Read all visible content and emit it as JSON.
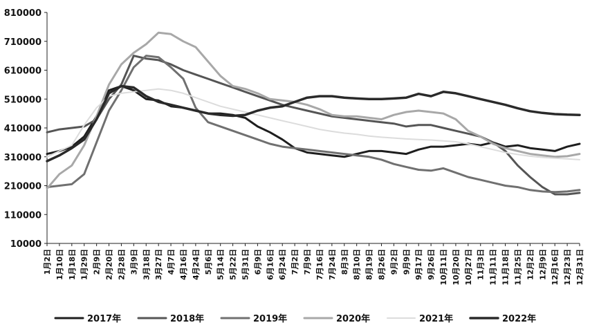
{
  "chart_data": {
    "type": "line",
    "title": "",
    "xlabel": "",
    "ylabel": "",
    "ylim": [
      10000,
      810000
    ],
    "yticks": [
      10000,
      110000,
      210000,
      310000,
      410000,
      510000,
      610000,
      710000,
      810000
    ],
    "grid": false,
    "legend_position": "bottom",
    "x": [
      "1月2日",
      "1月10日",
      "1月18日",
      "1月29日",
      "2月9日",
      "2月20日",
      "2月28日",
      "3月9日",
      "3月18日",
      "3月27日",
      "4月7日",
      "4月16日",
      "4月24日",
      "5月6日",
      "5月14日",
      "5月22日",
      "5月31日",
      "6月9日",
      "6月16日",
      "6月24日",
      "7月2日",
      "7月9日",
      "7月16日",
      "7月24日",
      "8月3日",
      "8月10日",
      "8月19日",
      "8月26日",
      "9月2日",
      "9月9日",
      "9月17日",
      "9月26日",
      "10月11日",
      "10月20日",
      "10月27日",
      "11月3日",
      "11月11日",
      "11月18日",
      "11月25日",
      "12月2日",
      "12月9日",
      "12月16日",
      "12月23日",
      "12月31日"
    ],
    "series": [
      {
        "name": "2017年",
        "color": "#1e1e1e",
        "width": 3,
        "values": [
          320000,
          330000,
          345000,
          380000,
          450000,
          540000,
          555000,
          540000,
          510000,
          505000,
          485000,
          480000,
          470000,
          460000,
          460000,
          455000,
          445000,
          415000,
          395000,
          370000,
          340000,
          325000,
          320000,
          315000,
          310000,
          320000,
          330000,
          330000,
          325000,
          320000,
          335000,
          345000,
          345000,
          350000,
          355000,
          350000,
          360000,
          345000,
          350000,
          340000,
          335000,
          330000,
          345000,
          355000
        ]
      },
      {
        "name": "2018年",
        "color": "#555555",
        "width": 3,
        "values": [
          395000,
          405000,
          410000,
          415000,
          440000,
          510000,
          560000,
          660000,
          650000,
          645000,
          630000,
          610000,
          595000,
          580000,
          565000,
          550000,
          535000,
          520000,
          505000,
          490000,
          480000,
          470000,
          460000,
          450000,
          445000,
          440000,
          435000,
          430000,
          425000,
          415000,
          420000,
          420000,
          410000,
          400000,
          390000,
          380000,
          360000,
          330000,
          280000,
          240000,
          205000,
          180000,
          180000,
          185000
        ]
      },
      {
        "name": "2019年",
        "color": "#707070",
        "width": 3,
        "values": [
          205000,
          210000,
          215000,
          250000,
          360000,
          470000,
          540000,
          620000,
          660000,
          655000,
          620000,
          580000,
          480000,
          430000,
          415000,
          400000,
          385000,
          370000,
          355000,
          345000,
          340000,
          335000,
          330000,
          325000,
          320000,
          315000,
          310000,
          300000,
          285000,
          275000,
          265000,
          262000,
          270000,
          255000,
          240000,
          230000,
          220000,
          210000,
          205000,
          195000,
          190000,
          188000,
          190000,
          195000
        ]
      },
      {
        "name": "2020年",
        "color": "#a8a8a8",
        "width": 3,
        "values": [
          200000,
          250000,
          280000,
          350000,
          450000,
          560000,
          630000,
          670000,
          700000,
          740000,
          735000,
          710000,
          690000,
          640000,
          590000,
          555000,
          545000,
          530000,
          510000,
          505000,
          500000,
          490000,
          475000,
          455000,
          450000,
          450000,
          445000,
          440000,
          455000,
          465000,
          470000,
          465000,
          460000,
          440000,
          400000,
          380000,
          355000,
          340000,
          330000,
          320000,
          315000,
          310000,
          312000,
          320000
        ]
      },
      {
        "name": "2021年",
        "color": "#dcdcdc",
        "width": 2,
        "values": [
          310000,
          330000,
          350000,
          420000,
          480000,
          520000,
          530000,
          535000,
          540000,
          545000,
          540000,
          530000,
          515000,
          500000,
          485000,
          475000,
          465000,
          455000,
          445000,
          435000,
          425000,
          415000,
          405000,
          398000,
          392000,
          388000,
          382000,
          378000,
          375000,
          372000,
          370000,
          368000,
          365000,
          362000,
          355000,
          345000,
          335000,
          325000,
          318000,
          312000,
          308000,
          305000,
          303000,
          300000
        ]
      },
      {
        "name": "2022年",
        "color": "#2a2a2a",
        "width": 3.5,
        "values": [
          295000,
          315000,
          340000,
          370000,
          440000,
          530000,
          555000,
          550000,
          520000,
          500000,
          490000,
          480000,
          470000,
          460000,
          455000,
          452000,
          455000,
          470000,
          480000,
          485000,
          500000,
          515000,
          520000,
          520000,
          515000,
          512000,
          510000,
          510000,
          512000,
          515000,
          528000,
          520000,
          535000,
          530000,
          520000,
          510000,
          500000,
          490000,
          478000,
          468000,
          462000,
          458000,
          456000,
          455000
        ]
      }
    ]
  }
}
